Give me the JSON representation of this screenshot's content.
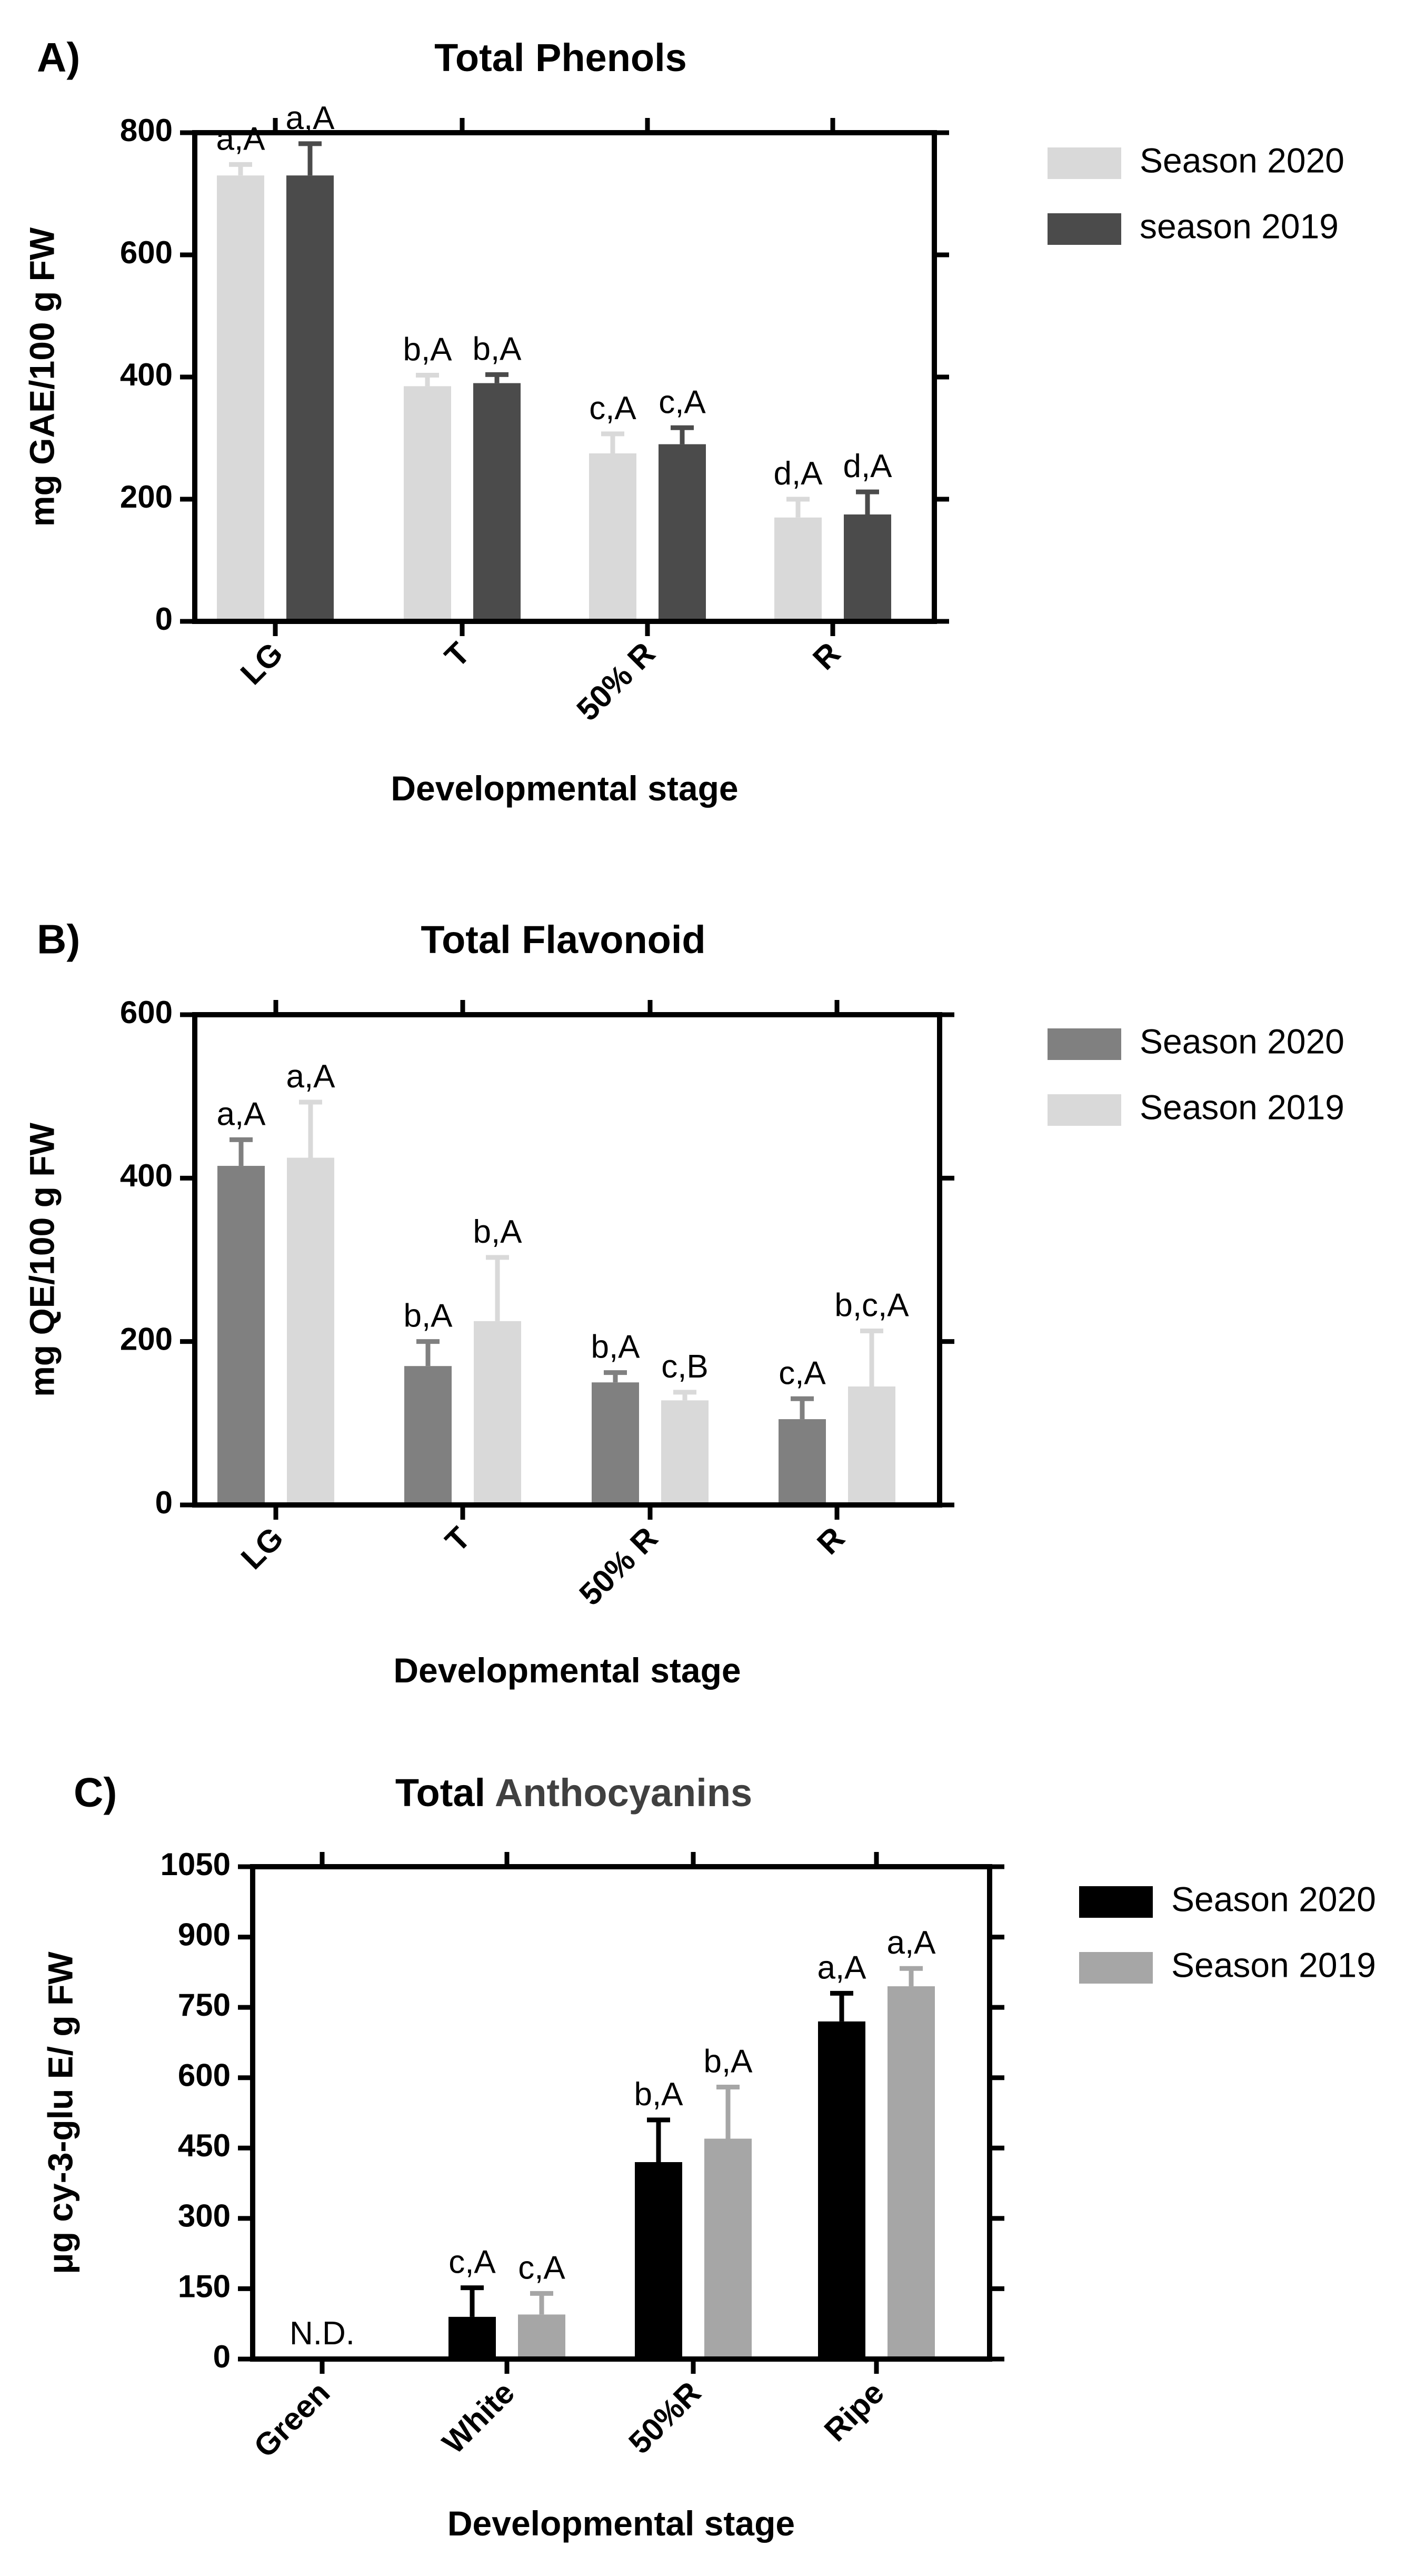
{
  "chart_data": [
    {
      "type": "bar",
      "panel_label": "A)",
      "title": "Total Phenols",
      "title_parts": [
        {
          "text": "Total Phenols",
          "color": "#000000"
        }
      ],
      "xlabel": "Developmental stage",
      "ylabel": "mg GAE/100 g FW",
      "ylim": [
        0,
        800
      ],
      "yticks": [
        0,
        200,
        400,
        600,
        800
      ],
      "categories": [
        "LG",
        "T",
        "50% R",
        "R"
      ],
      "legend_position": "top-right, outside plot",
      "series": [
        {
          "name": "Season 2020",
          "color": "#d9d9d9",
          "values": [
            730,
            385,
            275,
            170
          ],
          "errors": [
            18,
            18,
            32,
            30
          ],
          "labels": [
            "a,A",
            "b,A",
            "c,A",
            "d,A"
          ]
        },
        {
          "name": "season 2019",
          "color": "#4b4b4b",
          "values": [
            730,
            390,
            290,
            175
          ],
          "errors": [
            52,
            14,
            27,
            37
          ],
          "labels": [
            "a,A",
            "b,A",
            "c,A",
            "d,A"
          ]
        }
      ]
    },
    {
      "type": "bar",
      "panel_label": "B)",
      "title": "Total Flavonoid",
      "title_parts": [
        {
          "text": "Total Flavonoid",
          "color": "#000000"
        }
      ],
      "xlabel": "Developmental stage",
      "ylabel": "mg QE/100 g FW",
      "ylim": [
        0,
        600
      ],
      "yticks": [
        0,
        200,
        400,
        600
      ],
      "categories": [
        "LG",
        "T",
        "50% R",
        "R"
      ],
      "legend_position": "top-right, outside plot",
      "series": [
        {
          "name": "Season 2020",
          "color": "#808080",
          "values": [
            415,
            170,
            150,
            105
          ],
          "errors": [
            32,
            30,
            12,
            25
          ],
          "labels": [
            "a,A",
            "b,A",
            "b,A",
            "c,A"
          ]
        },
        {
          "name": "Season 2019",
          "color": "#d9d9d9",
          "values": [
            425,
            225,
            128,
            145
          ],
          "errors": [
            68,
            78,
            10,
            68
          ],
          "labels": [
            "a,A",
            "b,A",
            "c,B",
            "b,c,A"
          ]
        }
      ]
    },
    {
      "type": "bar",
      "panel_label": "C)",
      "title": "Total Anthocyanins",
      "title_parts": [
        {
          "text": "Total ",
          "color": "#000000"
        },
        {
          "text": "Anthocyanins",
          "color": "#404040"
        }
      ],
      "xlabel": "Developmental stage",
      "ylabel": "μg cy-3-glu E/ g FW",
      "ylim": [
        0,
        1050
      ],
      "yticks": [
        0,
        150,
        300,
        450,
        600,
        750,
        900,
        1050
      ],
      "categories": [
        "Green",
        "White",
        "50%R",
        "Ripe"
      ],
      "legend_position": "top-right, outside plot",
      "annotations": [
        {
          "category": "Green",
          "text": "N.D."
        }
      ],
      "series": [
        {
          "name": "Season 2020",
          "color": "#000000",
          "values": [
            null,
            90,
            420,
            720
          ],
          "errors": [
            null,
            62,
            90,
            60
          ],
          "labels": [
            null,
            "c,A",
            "b,A",
            "a,A"
          ]
        },
        {
          "name": "Season 2019",
          "color": "#a6a6a6",
          "values": [
            null,
            95,
            470,
            795
          ],
          "errors": [
            null,
            45,
            110,
            38
          ],
          "labels": [
            null,
            "c,A",
            "b,A",
            "a,A"
          ]
        }
      ]
    }
  ]
}
